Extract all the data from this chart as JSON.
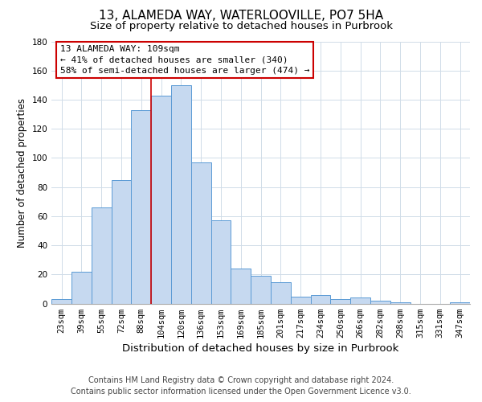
{
  "title": "13, ALAMEDA WAY, WATERLOOVILLE, PO7 5HA",
  "subtitle": "Size of property relative to detached houses in Purbrook",
  "xlabel": "Distribution of detached houses by size in Purbrook",
  "ylabel": "Number of detached properties",
  "bin_labels": [
    "23sqm",
    "39sqm",
    "55sqm",
    "72sqm",
    "88sqm",
    "104sqm",
    "120sqm",
    "136sqm",
    "153sqm",
    "169sqm",
    "185sqm",
    "201sqm",
    "217sqm",
    "234sqm",
    "250sqm",
    "266sqm",
    "282sqm",
    "298sqm",
    "315sqm",
    "331sqm",
    "347sqm"
  ],
  "bar_heights": [
    3,
    22,
    66,
    85,
    133,
    143,
    150,
    97,
    57,
    24,
    19,
    15,
    5,
    6,
    3,
    4,
    2,
    1,
    0,
    0,
    1
  ],
  "bar_color": "#c6d9f0",
  "bar_edge_color": "#5b9bd5",
  "vline_color": "#cc0000",
  "vline_x_index": 5,
  "ylim": [
    0,
    180
  ],
  "yticks": [
    0,
    20,
    40,
    60,
    80,
    100,
    120,
    140,
    160,
    180
  ],
  "annotation_title": "13 ALAMEDA WAY: 109sqm",
  "annotation_line1": "← 41% of detached houses are smaller (340)",
  "annotation_line2": "58% of semi-detached houses are larger (474) →",
  "annotation_box_color": "#ffffff",
  "annotation_box_edge": "#cc0000",
  "footer_line1": "Contains HM Land Registry data © Crown copyright and database right 2024.",
  "footer_line2": "Contains public sector information licensed under the Open Government Licence v3.0.",
  "background_color": "#ffffff",
  "grid_color": "#d0dce8",
  "title_fontsize": 11,
  "subtitle_fontsize": 9.5,
  "xlabel_fontsize": 9.5,
  "ylabel_fontsize": 8.5,
  "tick_fontsize": 7.5,
  "annotation_fontsize": 8,
  "footer_fontsize": 7
}
